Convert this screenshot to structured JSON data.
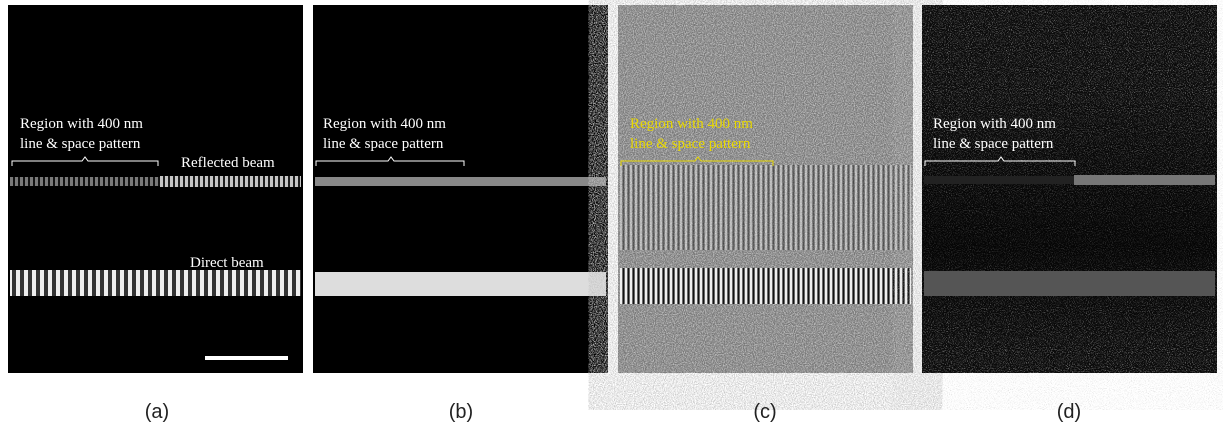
{
  "panels": [
    {
      "caption": "(a)",
      "region_label": [
        "Region with 400 nm",
        "line & space pattern"
      ],
      "beam_labels": [
        "Reflected beam",
        "Direct beam"
      ]
    },
    {
      "caption": "(b)",
      "region_label": [
        "Region with 400 nm",
        "line & space pattern"
      ]
    },
    {
      "caption": "(c)",
      "region_label": [
        "Region with 400 nm",
        "line & space pattern"
      ]
    },
    {
      "caption": "(d)",
      "region_label": [
        "Region with 400 nm",
        "line & space pattern"
      ]
    }
  ]
}
